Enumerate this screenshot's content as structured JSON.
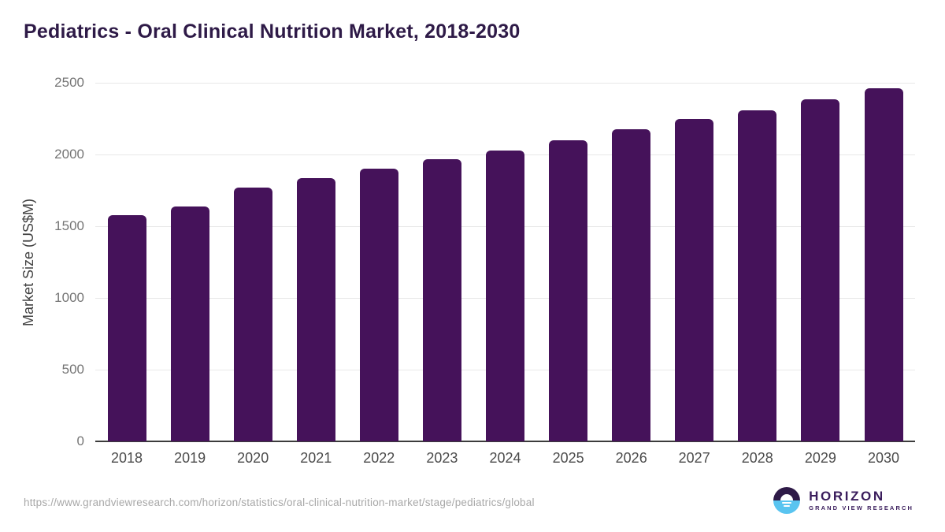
{
  "title": "Pediatrics - Oral Clinical Nutrition Market, 2018-2030",
  "chart_data": {
    "type": "bar",
    "title": "Pediatrics - Oral Clinical Nutrition Market, 2018-2030",
    "xlabel": "",
    "ylabel": "Market Size (US$M)",
    "categories": [
      "2018",
      "2019",
      "2020",
      "2021",
      "2022",
      "2023",
      "2024",
      "2025",
      "2026",
      "2027",
      "2028",
      "2029",
      "2030"
    ],
    "values": [
      1575,
      1635,
      1770,
      1835,
      1900,
      1965,
      2030,
      2100,
      2175,
      2245,
      2310,
      2385,
      2460
    ],
    "ylim": [
      0,
      2500
    ],
    "yticks": [
      0,
      500,
      1000,
      1500,
      2000,
      2500
    ],
    "grid": true,
    "legend": "none",
    "bar_color": "#45125a"
  },
  "footer": {
    "source_url": "https://www.grandviewresearch.com/horizon/statistics/oral-clinical-nutrition-market/stage/pediatrics/global",
    "logo": {
      "name": "HORIZON",
      "subtitle": "GRAND VIEW RESEARCH"
    }
  },
  "colors": {
    "title_text": "#2e1a47",
    "bar": "#45125a",
    "gridline": "#e8e8e8",
    "axis_line": "#3c3c3c",
    "ytick_text": "#757575",
    "xtick_text": "#4b4b4b",
    "url_text": "#a8a8a8",
    "logo_purple": "#3a1d5c",
    "logo_blue": "#59c4f0"
  }
}
